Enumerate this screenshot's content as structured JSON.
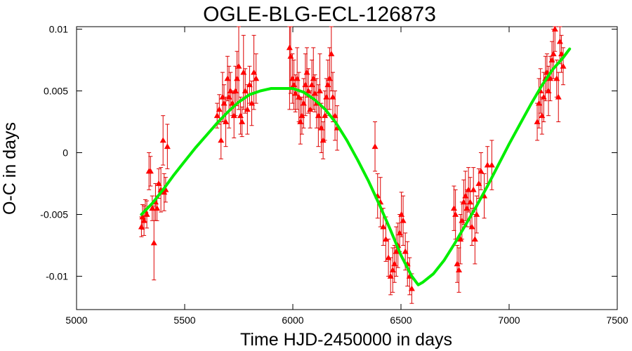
{
  "chart_data": {
    "type": "scatter",
    "title": "OGLE-BLG-ECL-126873",
    "xlabel": "Time HJD-2450000 in days",
    "ylabel": "O-C in days",
    "xlim": [
      5000,
      7500
    ],
    "ylim": [
      -0.0127,
      0.0102
    ],
    "xticks": [
      5000,
      5500,
      6000,
      6500,
      7000,
      7500
    ],
    "xtick_labels": [
      "5000",
      "5500",
      "6000",
      "6500",
      "7000",
      "7500"
    ],
    "yticks": [
      -0.01,
      -0.005,
      0,
      0.005,
      0.01
    ],
    "ytick_labels": [
      "-0.01",
      "-0.005",
      "0",
      "0.005",
      "0.01"
    ],
    "grid": false,
    "colors": {
      "points": "#ff0000",
      "errorbars": "#dd0000",
      "fit": "#00ee00",
      "frame": "#000000"
    },
    "series": [
      {
        "kind": "points_with_errorbars",
        "x": [
          5300,
          5305,
          5312,
          5318,
          5325,
          5335,
          5342,
          5350,
          5358,
          5365,
          5372,
          5380,
          5390,
          5400,
          5405,
          5412,
          5420,
          5650,
          5660,
          5668,
          5675,
          5682,
          5690,
          5698,
          5705,
          5712,
          5720,
          5728,
          5735,
          5742,
          5750,
          5758,
          5765,
          5772,
          5780,
          5790,
          5800,
          5810,
          5820,
          5830,
          5985,
          5990,
          5998,
          6005,
          6012,
          6020,
          6028,
          6035,
          6042,
          6050,
          6058,
          6065,
          6072,
          6080,
          6088,
          6095,
          6102,
          6110,
          6118,
          6125,
          6132,
          6140,
          6148,
          6155,
          6162,
          6170,
          6178,
          6185,
          6195,
          6205,
          6380,
          6392,
          6405,
          6418,
          6430,
          6442,
          6452,
          6462,
          6470,
          6478,
          6486,
          6494,
          6502,
          6510,
          6520,
          6530,
          6540,
          6550,
          6745,
          6752,
          6760,
          6768,
          6775,
          6782,
          6790,
          6798,
          6805,
          6812,
          6820,
          6828,
          6835,
          6842,
          6850,
          6860,
          6870,
          6885,
          6900,
          6920,
          7130,
          7138,
          7145,
          7152,
          7160,
          7168,
          7175,
          7182,
          7190,
          7198,
          7205,
          7212,
          7220,
          7228,
          7235,
          7242,
          7250
        ],
        "y": [
          -0.006,
          -0.0052,
          -0.0055,
          -0.0047,
          -0.005,
          -0.0015,
          -0.0015,
          -0.0045,
          -0.0073,
          -0.004,
          -0.0045,
          -0.0025,
          -0.003,
          0.001,
          -0.0032,
          -0.003,
          0.0005,
          0.003,
          0.0035,
          0.001,
          0.0045,
          0.004,
          0.0025,
          0.006,
          0.0045,
          0.005,
          0.004,
          0.003,
          0.005,
          0.006,
          0.007,
          0.003,
          0.0025,
          0.0065,
          0.005,
          0.0035,
          0.0055,
          0.004,
          0.0065,
          0.006,
          0.0085,
          0.0078,
          0.006,
          0.0055,
          0.0048,
          0.006,
          0.0045,
          0.0025,
          0.003,
          0.004,
          0.0055,
          0.0065,
          0.005,
          0.0035,
          0.0055,
          0.006,
          0.0048,
          0.004,
          0.003,
          0.005,
          0.002,
          0.001,
          0.003,
          0.0045,
          0.0055,
          0.006,
          0.008,
          0.0045,
          0.003,
          0.002,
          0.0005,
          -0.0035,
          -0.004,
          -0.006,
          -0.007,
          -0.0085,
          -0.01,
          -0.0095,
          -0.009,
          -0.008,
          -0.0075,
          -0.0065,
          -0.005,
          -0.0055,
          -0.008,
          -0.009,
          -0.01,
          -0.011,
          -0.0045,
          -0.005,
          -0.009,
          -0.0095,
          -0.007,
          -0.0055,
          -0.004,
          -0.0035,
          -0.0045,
          -0.003,
          -0.004,
          -0.006,
          -0.003,
          -0.007,
          -0.005,
          -0.0025,
          -0.0015,
          -0.0035,
          -0.001,
          -0.001,
          0.0025,
          0.004,
          0.005,
          0.003,
          0.0045,
          0.006,
          0.0065,
          0.005,
          0.006,
          0.0075,
          0.008,
          0.01,
          0.006,
          0.0045,
          0.009,
          0.008,
          0.007
        ],
        "err": [
          0.0008,
          0.001,
          0.0012,
          0.0009,
          0.0011,
          0.0015,
          0.0012,
          0.001,
          0.003,
          0.0015,
          0.001,
          0.0012,
          0.0018,
          0.002,
          0.0015,
          0.001,
          0.0018,
          0.001,
          0.0012,
          0.0015,
          0.002,
          0.0015,
          0.002,
          0.0018,
          0.0025,
          0.0015,
          0.001,
          0.0018,
          0.002,
          0.0022,
          0.0035,
          0.0015,
          0.0012,
          0.003,
          0.0018,
          0.002,
          0.0015,
          0.0018,
          0.003,
          0.002,
          0.005,
          0.003,
          0.002,
          0.002,
          0.0015,
          0.0025,
          0.002,
          0.0018,
          0.0015,
          0.002,
          0.0025,
          0.002,
          0.0018,
          0.0015,
          0.002,
          0.0025,
          0.0015,
          0.002,
          0.0025,
          0.003,
          0.002,
          0.0015,
          0.002,
          0.0015,
          0.002,
          0.0025,
          0.003,
          0.002,
          0.002,
          0.0018,
          0.002,
          0.0018,
          0.002,
          0.0015,
          0.0018,
          0.0015,
          0.0015,
          0.0018,
          0.0015,
          0.002,
          0.0018,
          0.0015,
          0.0018,
          0.002,
          0.0015,
          0.0018,
          0.0015,
          0.0012,
          0.0018,
          0.002,
          0.0015,
          0.0018,
          0.002,
          0.0015,
          0.0018,
          0.002,
          0.0015,
          0.0018,
          0.002,
          0.0015,
          0.0018,
          0.002,
          0.0015,
          0.0012,
          0.0015,
          0.0018,
          0.0015,
          0.002,
          0.0015,
          0.002,
          0.0018,
          0.0015,
          0.002,
          0.0018,
          0.0015,
          0.002,
          0.0018,
          0.0015,
          0.002,
          0.0018,
          0.0015,
          0.002,
          0.0018,
          0.0015,
          0.0015
        ]
      },
      {
        "kind": "fit_curve",
        "x": [
          5300,
          5350,
          5400,
          5450,
          5500,
          5550,
          5600,
          5650,
          5700,
          5750,
          5800,
          5850,
          5900,
          5950,
          6000,
          6050,
          6100,
          6150,
          6200,
          6250,
          6300,
          6350,
          6400,
          6450,
          6500,
          6550,
          6580,
          6600,
          6650,
          6700,
          6750,
          6800,
          6850,
          6900,
          6950,
          7000,
          7050,
          7100,
          7150,
          7200,
          7250,
          7280
        ],
        "y": [
          -0.005,
          -0.0041,
          -0.003,
          -0.0018,
          -0.0007,
          0.0004,
          0.0014,
          0.0024,
          0.0033,
          0.0041,
          0.0047,
          0.005,
          0.0052,
          0.0052,
          0.0052,
          0.0049,
          0.0043,
          0.0035,
          0.0024,
          0.001,
          -0.0006,
          -0.0023,
          -0.0042,
          -0.0062,
          -0.0083,
          -0.01,
          -0.0107,
          -0.0105,
          -0.0098,
          -0.0087,
          -0.0073,
          -0.0058,
          -0.0043,
          -0.0027,
          -0.001,
          0.0007,
          0.0023,
          0.0039,
          0.0054,
          0.0067,
          0.0077,
          0.0084
        ]
      }
    ]
  }
}
